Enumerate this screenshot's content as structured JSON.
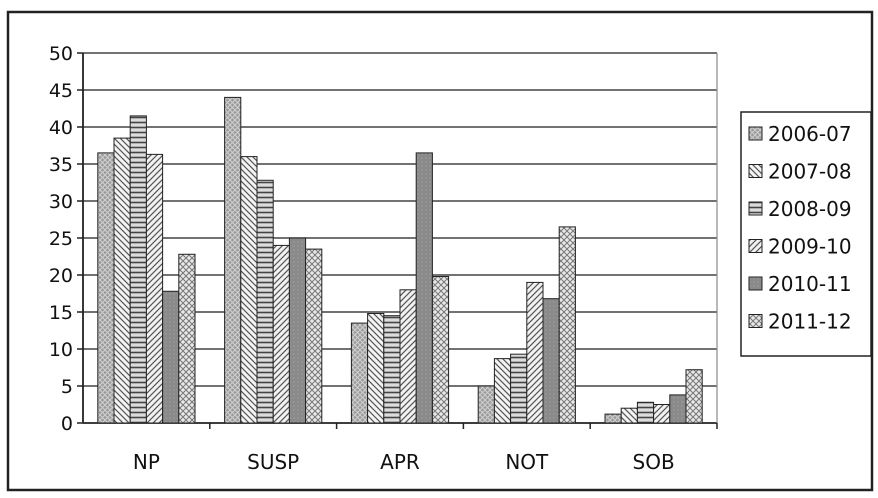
{
  "chart_data": {
    "type": "bar",
    "categories": [
      "NP",
      "SUSP",
      "APR",
      "NOT",
      "SOB"
    ],
    "ylim": [
      0,
      50
    ],
    "yticks": [
      0,
      5,
      10,
      15,
      20,
      25,
      30,
      35,
      40,
      45,
      50
    ],
    "grid": true,
    "legend_position": "right",
    "series": [
      {
        "name": "2006-07",
        "values": [
          36.5,
          44,
          13.5,
          5,
          1.2
        ]
      },
      {
        "name": "2007-08",
        "values": [
          38.5,
          36,
          14.8,
          8.7,
          2
        ]
      },
      {
        "name": "2008-09",
        "values": [
          41.5,
          32.8,
          14.5,
          9.3,
          2.8
        ]
      },
      {
        "name": "2009-10",
        "values": [
          36.3,
          24,
          18,
          19,
          2.5
        ]
      },
      {
        "name": "2010-11",
        "values": [
          17.8,
          25,
          36.5,
          16.8,
          3.8
        ]
      },
      {
        "name": "2011-12",
        "values": [
          22.8,
          23.5,
          19.8,
          26.5,
          7.2
        ]
      }
    ]
  }
}
